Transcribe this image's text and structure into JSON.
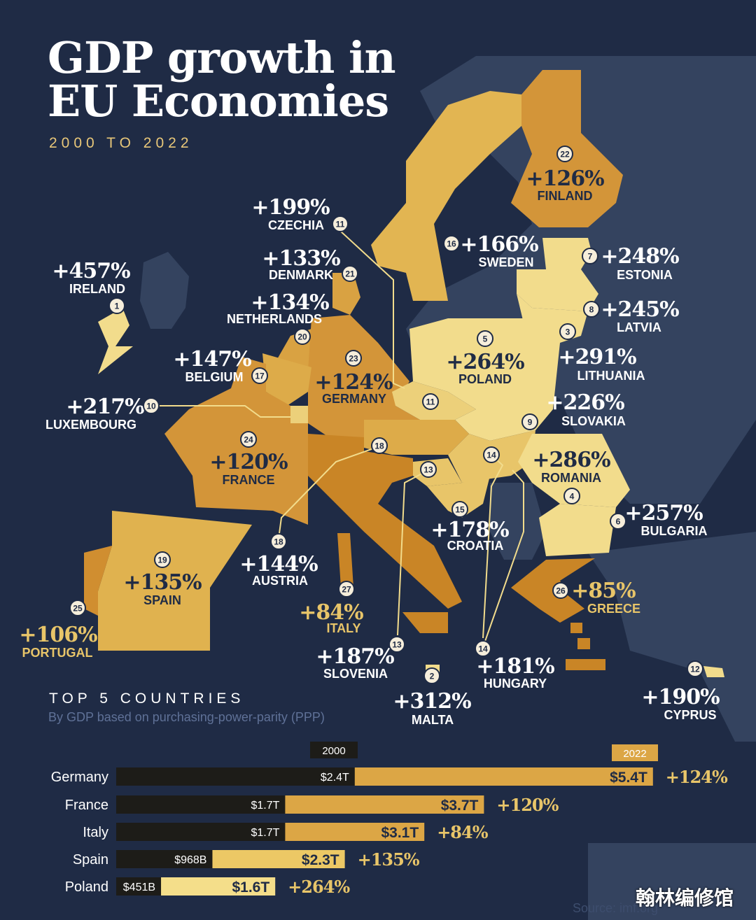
{
  "title_line1": "GDP growth in",
  "title_line2": "EU Economies",
  "subtitle": "2000 TO 2022",
  "countries": [
    {
      "rank": "1",
      "name": "IRELAND",
      "growth": "+457%",
      "color": "#f2dc8c"
    },
    {
      "rank": "2",
      "name": "MALTA",
      "growth": "+312%",
      "color": "#f2dc8c"
    },
    {
      "rank": "3",
      "name": "LITHUANIA",
      "growth": "+291%",
      "color": "#f2dc8c"
    },
    {
      "rank": "4",
      "name": "ROMANIA",
      "growth": "+286%",
      "color": "#f2dc8c"
    },
    {
      "rank": "5",
      "name": "POLAND",
      "growth": "+264%",
      "color": "#f2dc8c"
    },
    {
      "rank": "6",
      "name": "BULGARIA",
      "growth": "+257%",
      "color": "#f2dc8c"
    },
    {
      "rank": "7",
      "name": "ESTONIA",
      "growth": "+248%",
      "color": "#f2dc8c"
    },
    {
      "rank": "8",
      "name": "LATVIA",
      "growth": "+245%",
      "color": "#f2dc8c"
    },
    {
      "rank": "9",
      "name": "SLOVAKIA",
      "growth": "+226%",
      "color": "#f2dc8c"
    },
    {
      "rank": "10",
      "name": "LUXEMBOURG",
      "growth": "+217%",
      "color": "#ecd07a"
    },
    {
      "rank": "11",
      "name": "CZECHIA",
      "growth": "+199%",
      "color": "#ecd07a"
    },
    {
      "rank": "12",
      "name": "CYPRUS",
      "growth": "+190%",
      "color": "#ecd07a"
    },
    {
      "rank": "13",
      "name": "SLOVENIA",
      "growth": "+187%",
      "color": "#e8c569"
    },
    {
      "rank": "14",
      "name": "HUNGARY",
      "growth": "+181%",
      "color": "#e8c569"
    },
    {
      "rank": "15",
      "name": "CROATIA",
      "growth": "+178%",
      "color": "#e8c569"
    },
    {
      "rank": "16",
      "name": "SWEDEN",
      "growth": "+166%",
      "color": "#e2b552"
    },
    {
      "rank": "17",
      "name": "BELGIUM",
      "growth": "+147%",
      "color": "#ddab49"
    },
    {
      "rank": "18",
      "name": "AUSTRIA",
      "growth": "+144%",
      "color": "#ddab49"
    },
    {
      "rank": "19",
      "name": "SPAIN",
      "growth": "+135%",
      "color": "#e0b24f"
    },
    {
      "rank": "20",
      "name": "NETHERLANDS",
      "growth": "+134%",
      "color": "#d9a242"
    },
    {
      "rank": "21",
      "name": "DENMARK",
      "growth": "+133%",
      "color": "#d9a242"
    },
    {
      "rank": "22",
      "name": "FINLAND",
      "growth": "+126%",
      "color": "#d39539"
    },
    {
      "rank": "23",
      "name": "GERMANY",
      "growth": "+124%",
      "color": "#d39539"
    },
    {
      "rank": "24",
      "name": "FRANCE",
      "growth": "+120%",
      "color": "#d39539"
    },
    {
      "rank": "25",
      "name": "PORTUGAL",
      "growth": "+106%",
      "color": "#d08e30"
    },
    {
      "rank": "26",
      "name": "GREECE",
      "growth": "+85%",
      "color": "#c98526"
    },
    {
      "rank": "27",
      "name": "ITALY",
      "growth": "+84%",
      "color": "#c98526"
    }
  ],
  "chart_title": "TOP 5 COUNTRIES",
  "chart_subtitle": "By GDP based on purchasing-power-parity (PPP)",
  "chart_data": {
    "type": "bar",
    "title": "TOP 5 COUNTRIES",
    "subtitle": "By GDP based on purchasing-power-parity (PPP)",
    "categories": [
      "Germany",
      "France",
      "Italy",
      "Spain",
      "Poland"
    ],
    "series": [
      {
        "name": "2000",
        "values": [
          2.4,
          1.7,
          1.7,
          0.968,
          0.451
        ],
        "labels": [
          "$2.4T",
          "$1.7T",
          "$1.7T",
          "$968B",
          "$451B"
        ],
        "color": "#1d1c18"
      },
      {
        "name": "2022",
        "values": [
          5.4,
          3.7,
          3.1,
          2.3,
          1.6
        ],
        "labels": [
          "$5.4T",
          "$3.7T",
          "$3.1T",
          "$2.3T",
          "$1.6T"
        ],
        "colors": [
          "#dca645",
          "#dca645",
          "#dca645",
          "#ecc865",
          "#f4de8a"
        ]
      }
    ],
    "growth_labels": [
      "+124%",
      "+120%",
      "+84%",
      "+135%",
      "+264%"
    ],
    "legend_2000_color": "#1d1c18",
    "legend_2022_color": "#dca645"
  },
  "source": "Source: imf.org",
  "watermark": "翰林编修馆",
  "colors": {
    "background": "#1f2b45",
    "land_outside": "#34435f",
    "accent_gold": "#e8c779"
  }
}
